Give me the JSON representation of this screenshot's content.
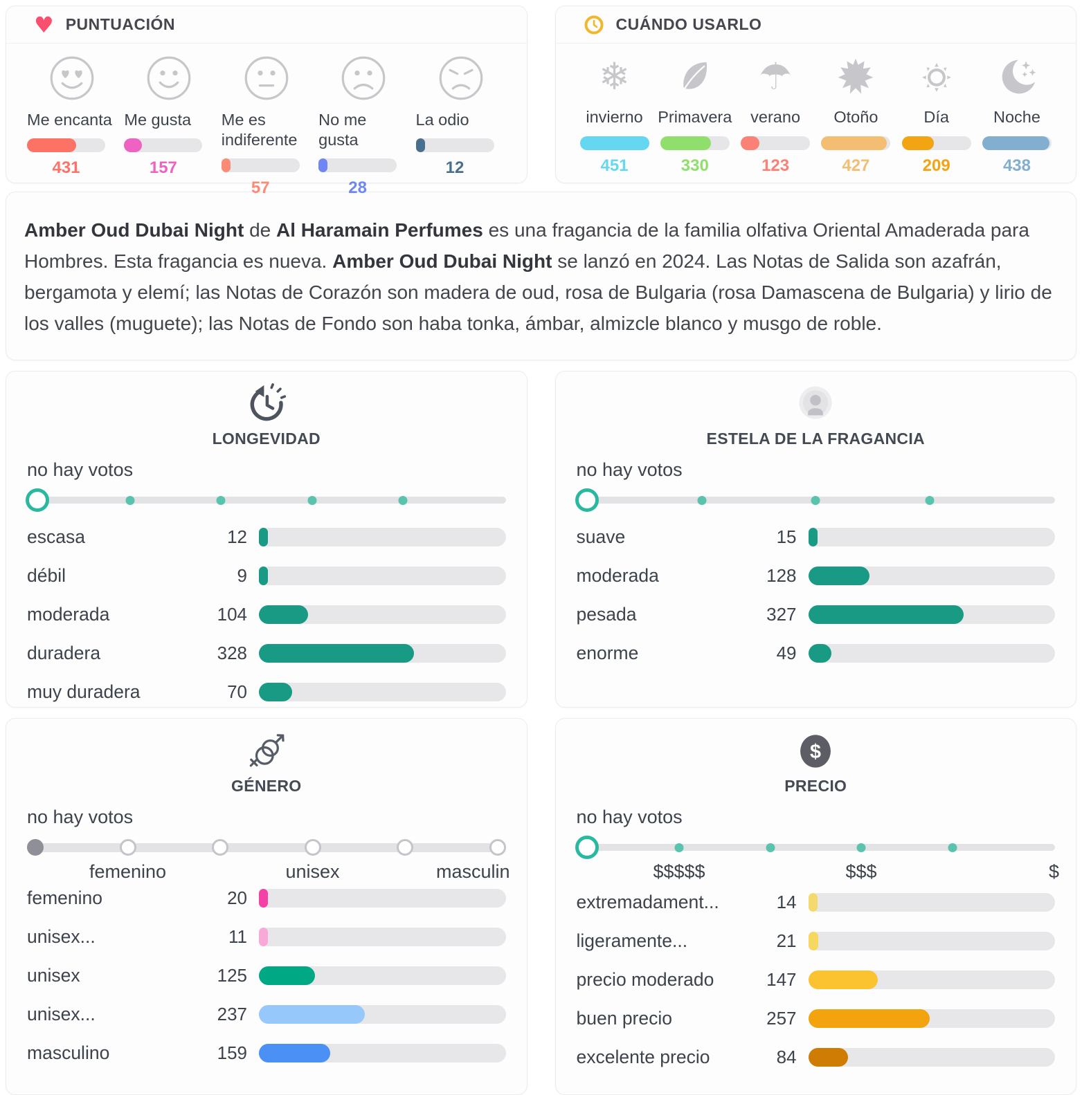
{
  "puntuacion": {
    "title": "PUNTUACIÓN",
    "header_icon": "heart-icon",
    "items": [
      {
        "icon": "heart-eyes-face-icon",
        "label": "Me encanta",
        "value": "431",
        "pct": 63,
        "color": "#fc7265"
      },
      {
        "icon": "smile-face-icon",
        "label": "Me gusta",
        "value": "157",
        "pct": 23,
        "color": "#ee63c2"
      },
      {
        "icon": "neutral-face-icon",
        "label": "Me es\nindiferente",
        "value": "57",
        "pct": 8,
        "color": "#fb8a77"
      },
      {
        "icon": "frown-face-icon",
        "label": "No me gusta",
        "value": "28",
        "pct": 4,
        "color": "#6e87f3"
      },
      {
        "icon": "angry-face-icon",
        "label": "La odio",
        "value": "12",
        "pct": 2,
        "color": "#48708e"
      }
    ]
  },
  "cuando": {
    "title": "CUÁNDO USARLO",
    "header_icon": "clock-icon",
    "items": [
      {
        "icon": "snowflake-icon",
        "label": "invierno",
        "value": "451",
        "pct": 100,
        "color": "#66d7f1"
      },
      {
        "icon": "leaf-icon",
        "label": "Primavera",
        "value": "330",
        "pct": 73,
        "color": "#90df6d"
      },
      {
        "icon": "umbrella-icon",
        "label": "verano",
        "value": "123",
        "pct": 27,
        "color": "#f98175"
      },
      {
        "icon": "maple-leaf-icon",
        "label": "Otoño",
        "value": "427",
        "pct": 95,
        "color": "#f3bd72"
      },
      {
        "icon": "sun-icon",
        "label": "Día",
        "value": "209",
        "pct": 46,
        "color": "#f2a413"
      },
      {
        "icon": "moon-icon",
        "label": "Noche",
        "value": "438",
        "pct": 97,
        "color": "#82aed0"
      }
    ]
  },
  "description": {
    "segments": [
      {
        "text": "Amber Oud Dubai Night",
        "bold": true
      },
      {
        "text": " de ",
        "bold": false
      },
      {
        "text": "Al Haramain Perfumes",
        "bold": true
      },
      {
        "text": " es una fragancia de la familia olfativa Oriental Amaderada para Hombres. Esta fragancia es nueva. ",
        "bold": false
      },
      {
        "text": "Amber Oud Dubai Night",
        "bold": true
      },
      {
        "text": " se lanzó en 2024. Las Notas de Salida son azafrán, bergamota y elemí; las Notas de Corazón son madera de oud, rosa de Bulgaria (rosa Damascena de Bulgaria) y lirio de los valles (muguete); las Notas de Fondo son haba tonka, ámbar, almizcle blanco y musgo de roble.",
        "bold": false
      }
    ]
  },
  "panels": [
    {
      "id": "longevidad",
      "icon": "history-clock-icon",
      "title": "LONGEVIDAD",
      "no_votes": "no hay votos",
      "slider": {
        "style": "teal",
        "dots": [
          20,
          40,
          60,
          80
        ]
      },
      "rows": [
        {
          "label": "escasa",
          "value": "12",
          "pct": 2.3,
          "color": "#199a85"
        },
        {
          "label": "débil",
          "value": "9",
          "pct": 1.7,
          "color": "#199a85"
        },
        {
          "label": "moderada",
          "value": "104",
          "pct": 19.9,
          "color": "#199a85"
        },
        {
          "label": "duradera",
          "value": "328",
          "pct": 62.7,
          "color": "#199a85"
        },
        {
          "label": "muy duradera",
          "value": "70",
          "pct": 13.4,
          "color": "#199a85"
        }
      ]
    },
    {
      "id": "estela",
      "icon": "sillage-person-icon",
      "title": "ESTELA DE LA FRAGANCIA",
      "no_votes": "no hay votos",
      "slider": {
        "style": "teal",
        "dots": [
          25,
          50,
          75
        ]
      },
      "rows": [
        {
          "label": "suave",
          "value": "15",
          "pct": 2.9,
          "color": "#199a85"
        },
        {
          "label": "moderada",
          "value": "128",
          "pct": 24.7,
          "color": "#199a85"
        },
        {
          "label": "pesada",
          "value": "327",
          "pct": 63.0,
          "color": "#199a85"
        },
        {
          "label": "enorme",
          "value": "49",
          "pct": 9.4,
          "color": "#199a85"
        }
      ]
    },
    {
      "id": "genero",
      "icon": "gender-icon",
      "title": "GÉNERO",
      "no_votes": "no hay votos",
      "slider": {
        "style": "stops",
        "stops": [
          0,
          20,
          40,
          60,
          80,
          100
        ],
        "labels": [
          {
            "text": "femenino",
            "pct": 20
          },
          {
            "text": "unisex",
            "pct": 60
          },
          {
            "text": "masculin",
            "pct": 100
          }
        ]
      },
      "rows": [
        {
          "label": "femenino",
          "value": "20",
          "pct": 3.6,
          "color": "#f540a5"
        },
        {
          "label": "unisex...",
          "value": "11",
          "pct": 2.0,
          "color": "#f8a9d8"
        },
        {
          "label": "unisex",
          "value": "125",
          "pct": 22.6,
          "color": "#00a884"
        },
        {
          "label": "unisex...",
          "value": "237",
          "pct": 42.9,
          "color": "#97c8fb"
        },
        {
          "label": "masculino",
          "value": "159",
          "pct": 28.8,
          "color": "#4b90f4"
        }
      ]
    },
    {
      "id": "precio",
      "icon": "dollar-icon",
      "title": "PRECIO",
      "no_votes": "no hay votos",
      "slider": {
        "style": "teal",
        "dots": [
          20,
          40,
          60,
          80
        ],
        "labels": [
          {
            "text": "$$$$$",
            "pct": 20
          },
          {
            "text": "$$$",
            "pct": 60
          },
          {
            "text": "$",
            "pct": 100
          }
        ]
      },
      "rows": [
        {
          "label": "extremadament...",
          "value": "14",
          "pct": 2.7,
          "color": "#f4da6e"
        },
        {
          "label": "ligeramente...",
          "value": "21",
          "pct": 4.0,
          "color": "#f6d75f"
        },
        {
          "label": "precio moderado",
          "value": "147",
          "pct": 28.1,
          "color": "#fcc331"
        },
        {
          "label": "buen precio",
          "value": "257",
          "pct": 49.1,
          "color": "#f3a30d"
        },
        {
          "label": "excelente precio",
          "value": "84",
          "pct": 16.1,
          "color": "#ce7c04"
        }
      ]
    }
  ]
}
